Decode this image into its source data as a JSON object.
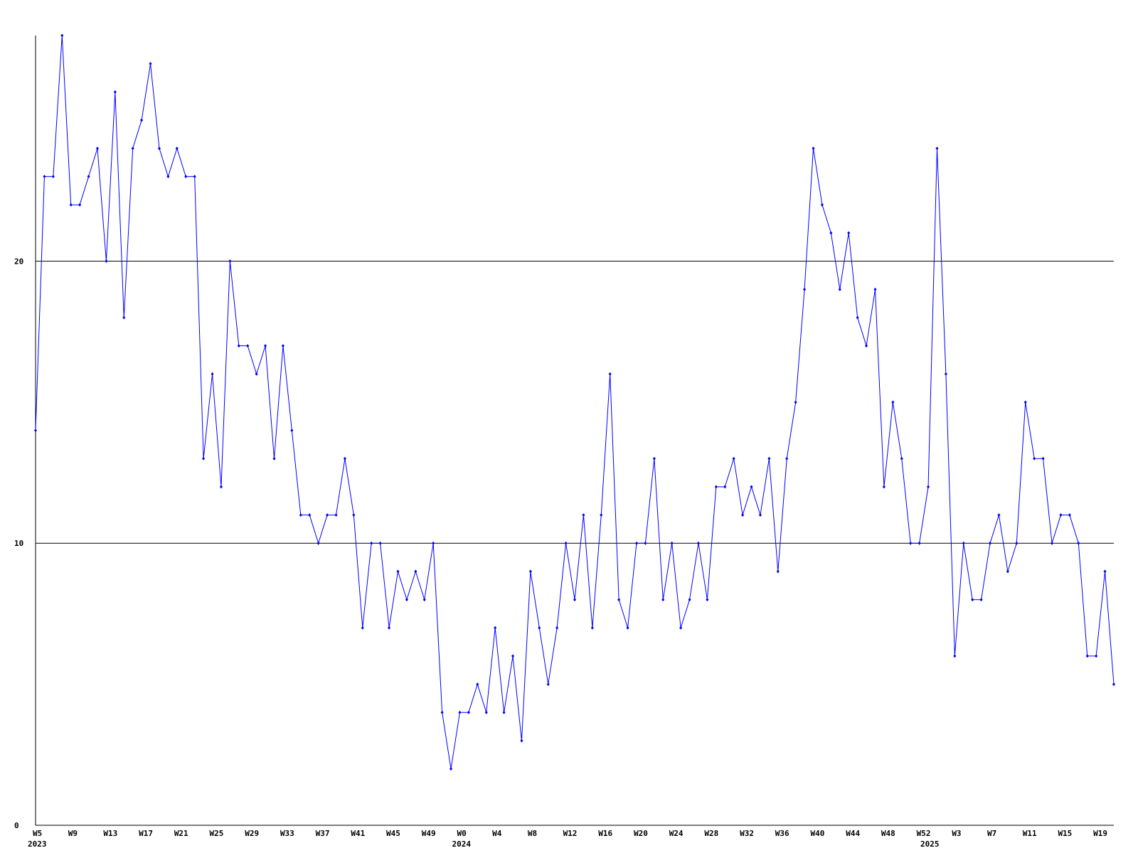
{
  "chart_data": {
    "type": "line",
    "categories": [
      "W5",
      null,
      null,
      null,
      "W9",
      null,
      null,
      null,
      "W13",
      null,
      null,
      null,
      "W17",
      null,
      null,
      null,
      "W21",
      null,
      null,
      null,
      "W25",
      null,
      null,
      null,
      "W29",
      null,
      null,
      null,
      "W33",
      null,
      null,
      null,
      "W37",
      null,
      null,
      null,
      "W41",
      null,
      null,
      null,
      "W45",
      null,
      null,
      null,
      "W49",
      null,
      null,
      null,
      "W0",
      null,
      null,
      null,
      "W4",
      null,
      null,
      null,
      "W8",
      null,
      null,
      null,
      "W12",
      null,
      null,
      null,
      "W16",
      null,
      null,
      null,
      "W20",
      null,
      null,
      null,
      "W24",
      null,
      null,
      null,
      "W28",
      null,
      null,
      null,
      "W32",
      null,
      null,
      null,
      "W36",
      null,
      null,
      null,
      "W40",
      null,
      null,
      null,
      "W44",
      null,
      null,
      null,
      "W48",
      null,
      null,
      null,
      "W52",
      null,
      null,
      null,
      "W3",
      null,
      null,
      null,
      "W7",
      null,
      null,
      null,
      "W11",
      null,
      null,
      null,
      "W15",
      null,
      null,
      null,
      "W19",
      null,
      null
    ],
    "years": [
      "2023",
      null,
      null,
      null,
      null,
      null,
      null,
      null,
      null,
      null,
      null,
      null,
      null,
      null,
      null,
      null,
      null,
      null,
      null,
      null,
      null,
      null,
      null,
      null,
      null,
      null,
      null,
      null,
      null,
      null,
      null,
      null,
      null,
      null,
      null,
      null,
      null,
      null,
      null,
      null,
      null,
      null,
      null,
      null,
      null,
      null,
      null,
      null,
      "2024",
      null,
      null,
      null,
      null,
      null,
      null,
      null,
      null,
      null,
      null,
      null,
      null,
      null,
      null,
      null,
      null,
      null,
      null,
      null,
      null,
      null,
      null,
      null,
      null,
      null,
      null,
      null,
      null,
      null,
      null,
      null,
      null,
      null,
      null,
      null,
      null,
      null,
      null,
      null,
      null,
      null,
      null,
      null,
      null,
      null,
      null,
      null,
      null,
      null,
      null,
      null,
      null,
      "2025",
      null,
      null,
      null,
      null,
      null,
      null,
      null,
      null,
      null,
      null,
      null,
      null,
      null,
      null,
      null,
      null,
      null,
      null,
      null,
      null,
      null
    ],
    "values": [
      14,
      23,
      23,
      28,
      22,
      22,
      23,
      24,
      20,
      26,
      18,
      24,
      25,
      27,
      24,
      23,
      24,
      23,
      23,
      13,
      16,
      12,
      20,
      17,
      17,
      16,
      17,
      13,
      17,
      14,
      11,
      11,
      10,
      11,
      11,
      13,
      11,
      7,
      10,
      10,
      7,
      9,
      8,
      9,
      8,
      10,
      4,
      2,
      4,
      4,
      5,
      4,
      7,
      4,
      6,
      3,
      9,
      7,
      5,
      7,
      10,
      8,
      11,
      7,
      11,
      16,
      8,
      7,
      10,
      10,
      13,
      8,
      10,
      7,
      8,
      10,
      8,
      12,
      12,
      13,
      11,
      12,
      11,
      13,
      9,
      13,
      15,
      19,
      24,
      22,
      21,
      19,
      21,
      18,
      17,
      19,
      12,
      15,
      13,
      10,
      10,
      12,
      24,
      16,
      6,
      10,
      8,
      8,
      10,
      11,
      9,
      10,
      15,
      13,
      13,
      10,
      11,
      11,
      10,
      6,
      6,
      9,
      5
    ],
    "color": "#0000ff",
    "ylim": [
      0,
      28
    ],
    "yticks": [
      0,
      10,
      20
    ],
    "grid": true
  }
}
